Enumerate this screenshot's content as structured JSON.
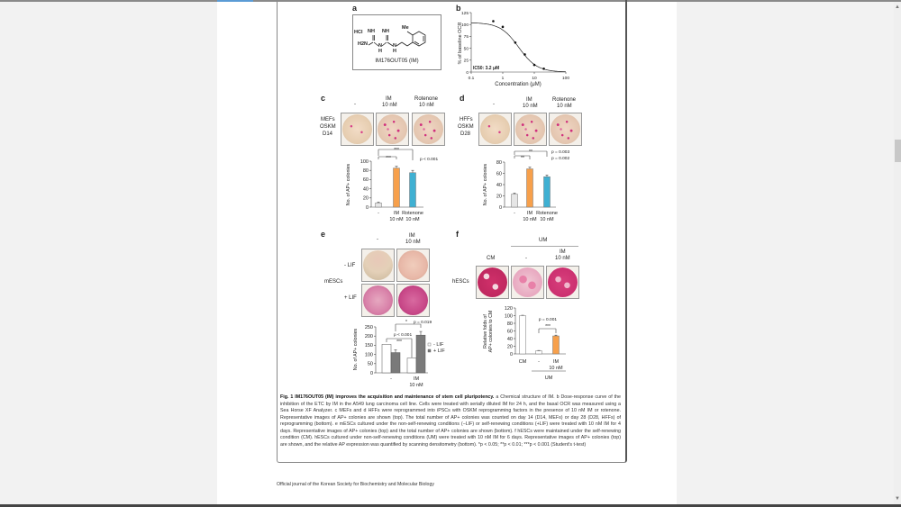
{
  "viewer": {
    "scroll_up_icon": "arrow-up-icon",
    "scroll_down_icon": "arrow-down-icon",
    "scroll_position_percent": 29
  },
  "figure": {
    "a": {
      "label": "a",
      "hcl": "HCl",
      "nh_left": "NH",
      "nh_right": "NH",
      "h2n": "H2N",
      "n_h1": "N",
      "h1": "H",
      "n_h2": "N",
      "h2": "H",
      "me": "Me",
      "compound_name": "IM176OUT05 (IM)"
    },
    "b": {
      "label": "b"
    },
    "c": {
      "label": "c",
      "col_neg": "-",
      "col_im_1": "IM",
      "col_im_2": "10 nM",
      "col_rot_1": "Rotenone",
      "col_rot_2": "10 nM",
      "row_1": "MEFs",
      "row_2": "OSKM",
      "row_3": "D14"
    },
    "d": {
      "label": "d",
      "col_neg": "-",
      "col_im_1": "IM",
      "col_im_2": "10 nM",
      "col_rot_1": "Rotenone",
      "col_rot_2": "10 nM",
      "row_1": "HFFs",
      "row_2": "OSKM",
      "row_3": "D28"
    },
    "e": {
      "label": "e",
      "col_neg": "-",
      "col_im_1": "IM",
      "col_im_2": "10 nM",
      "row_minus": "- LIF",
      "row_plus": "+ LIF",
      "cells": "mESCs"
    },
    "f": {
      "label": "f",
      "group": "UM",
      "col_cm": "CM",
      "col_neg": "-",
      "col_im_1": "IM",
      "col_im_2": "10 nM",
      "cells": "hESCs"
    },
    "caption": {
      "title": "Fig. 1 IM176OUT05 (IM) improves the acquisition and maintenance of stem cell pluripotency.",
      "text": " a Chemical structure of IM. b Dose-response curve of the inhibition of the ETC by IM in the A549 lung carcinoma cell line. Cells were treated with serially diluted IM for 24 h, and the basal OCR was measured using a Sea Horse XF Analyzer. c MEFs and d HFFs were reprogrammed into iPSCs with OSKM reprogramming factors in the presence of 10 nM IM or rotenone. Representative images of AP+ colonies are shown (top). The total number of AP+ colonies was counted on day 14 (D14, MEFs) or day 28 (D28, HFFs) of reprogramming (bottom). e mESCs cultured under the non-self-renewing conditions (−LIF) or self-renewing conditions (+LIF) were treated with 10 nM IM for 4 days. Representative images of AP+ colonies (top) and the total number of AP+ colonies are shown (bottom). f hESCs were maintained under the self-renewing condition (CM). hESCs cultured under non-self-renewing conditions (UM) were treated with 10 nM IM for 6 days. Representative images of AP+ colonies (top) are shown, and the relative AP expression was quantified by scanning densitometry (bottom). *p < 0.05; **p < 0.01; ***p < 0.001 (Student's t-test)"
    }
  },
  "footer": "Official journal of the Korean Society for Biochemistry and Molecular Biology",
  "chart_data": [
    {
      "panel": "b",
      "type": "line",
      "xlabel": "Concentration (μM)",
      "ylabel": "% of baseline OCR",
      "xscale": "log",
      "xlim": [
        0.1,
        100
      ],
      "ylim": [
        0,
        125
      ],
      "xticks": [
        "0.1",
        "1",
        "10",
        "100"
      ],
      "yticks": [
        "0",
        "25",
        "50",
        "75",
        "100",
        "125"
      ],
      "x": [
        0.5,
        1,
        2.5,
        5,
        10,
        20
      ],
      "y": [
        107,
        95,
        62,
        37,
        15,
        7
      ],
      "annotation": "IC50: 3.2 μM",
      "fit": "sigmoidal"
    },
    {
      "panel": "c",
      "type": "bar",
      "ylabel": "No. of AP+ colonies",
      "ylim": [
        0,
        100
      ],
      "yticks": [
        "0",
        "20",
        "40",
        "60",
        "80",
        "100"
      ],
      "categories": [
        [
          "-"
        ],
        [
          "IM",
          "10 nM"
        ],
        [
          "Rotenone",
          "10 nM"
        ]
      ],
      "values": [
        9,
        85,
        75
      ],
      "errors": [
        2,
        4,
        5
      ],
      "colors": [
        "#e6e6e6",
        "#f7a04b",
        "#3fb0d2"
      ],
      "annotations": {
        "sig_1": "***",
        "sig_2": "***",
        "p": "p < 0.001"
      }
    },
    {
      "panel": "d",
      "type": "bar",
      "ylabel": "No. of AP+ colonies",
      "ylim": [
        0,
        80
      ],
      "yticks": [
        "0",
        "20",
        "40",
        "60",
        "80"
      ],
      "categories": [
        [
          "-"
        ],
        [
          "IM",
          "10 nM"
        ],
        [
          "Rotenone",
          "10 nM"
        ]
      ],
      "values": [
        23,
        68,
        54
      ],
      "errors": [
        2,
        3,
        3
      ],
      "colors": [
        "#e6e6e6",
        "#f7a04b",
        "#3fb0d2"
      ],
      "annotations": {
        "sig_1": "**",
        "sig_2": "**",
        "p_1": "p = 0.003",
        "p_2": "p = 0.002"
      }
    },
    {
      "panel": "e",
      "type": "bar",
      "ylabel": "No. of AP+ colonies",
      "ylim": [
        0,
        250
      ],
      "yticks": [
        "0",
        "50",
        "100",
        "150",
        "200",
        "250"
      ],
      "categories": [
        [
          "-"
        ],
        [
          "IM",
          "10 nM"
        ]
      ],
      "series": [
        {
          "name": "- LIF",
          "values": [
            155,
            80
          ],
          "color": "#ffffff"
        },
        {
          "name": "+ LIF",
          "values": [
            110,
            205
          ],
          "color": "#7a7a7a",
          "errors": [
            15,
            20
          ]
        }
      ],
      "legend": "right",
      "annotations": {
        "sig_1": "*",
        "p_1": "p = 0.019",
        "p_2": "p < 0.001",
        "sig_2": "***"
      }
    },
    {
      "panel": "f",
      "type": "bar",
      "ylabel": "Relative folds of AP+ colonies to CM",
      "ylabel_lines": [
        "Relative folds of",
        "AP+ colonies to CM"
      ],
      "ylim": [
        0,
        120
      ],
      "yticks": [
        "0",
        "20",
        "40",
        "60",
        "80",
        "100",
        "120"
      ],
      "categories": [
        [
          "CM"
        ],
        [
          "-"
        ],
        [
          "IM",
          "10 nM"
        ]
      ],
      "values": [
        100,
        8,
        47
      ],
      "errors": [
        1,
        1,
        2
      ],
      "colors": [
        "#ffffff",
        "#ffffff",
        "#f7a04b"
      ],
      "group_label": "UM",
      "annotations": {
        "p": "p = 0.001",
        "sig": "***"
      }
    }
  ]
}
